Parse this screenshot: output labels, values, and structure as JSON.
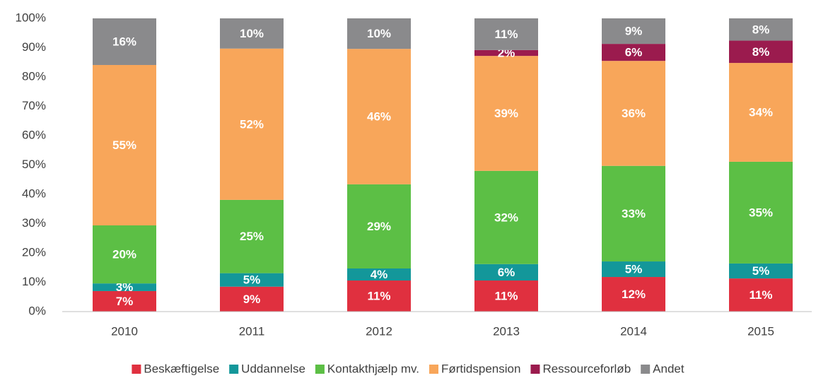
{
  "chart_data": {
    "type": "stacked_bar",
    "categories": [
      "2010",
      "2011",
      "2012",
      "2013",
      "2014",
      "2015"
    ],
    "ylim": [
      0,
      100
    ],
    "yticks": [
      {
        "value": 0,
        "label": "0%"
      },
      {
        "value": 10,
        "label": "10%"
      },
      {
        "value": 20,
        "label": "20%"
      },
      {
        "value": 30,
        "label": "30%"
      },
      {
        "value": 40,
        "label": "40%"
      },
      {
        "value": 50,
        "label": "50%"
      },
      {
        "value": 60,
        "label": "60%"
      },
      {
        "value": 70,
        "label": "70%"
      },
      {
        "value": 80,
        "label": "80%"
      },
      {
        "value": 90,
        "label": "90%"
      },
      {
        "value": 100,
        "label": "100%"
      }
    ],
    "legend": "bottom",
    "series": [
      {
        "name": "Beskæftigelse",
        "color": "#e0303f",
        "values": [
          7.0,
          8.5,
          10.6,
          10.6,
          11.8,
          11.3
        ],
        "value_labels": [
          "7%",
          "9%",
          "11%",
          "11%",
          "12%",
          "11%"
        ]
      },
      {
        "name": "Uddannelse",
        "color": "#13979a",
        "values": [
          2.6,
          4.6,
          4.1,
          5.6,
          5.3,
          5.1
        ],
        "value_labels": [
          "3%",
          "5%",
          "4%",
          "6%",
          "5%",
          "5%"
        ]
      },
      {
        "name": "Kontakthjælp mv.",
        "color": "#5cbf45",
        "values": [
          19.8,
          25.0,
          28.7,
          31.8,
          32.6,
          34.7
        ],
        "value_labels": [
          "20%",
          "25%",
          "29%",
          "32%",
          "33%",
          "35%"
        ]
      },
      {
        "name": "Førtidspension",
        "color": "#f8a65a",
        "values": [
          54.7,
          51.6,
          46.2,
          39.2,
          35.8,
          33.7
        ],
        "value_labels": [
          "55%",
          "52%",
          "46%",
          "39%",
          "36%",
          "34%"
        ]
      },
      {
        "name": "Ressourceforløb",
        "color": "#9b1b4e",
        "values": [
          null,
          null,
          null,
          2.0,
          5.8,
          7.6
        ],
        "value_labels": [
          null,
          null,
          null,
          "2%",
          "6%",
          "8%"
        ]
      },
      {
        "name": "Andet",
        "color": "#8a8a8c",
        "values": [
          15.9,
          10.3,
          10.4,
          10.8,
          8.7,
          7.6
        ],
        "value_labels": [
          "16%",
          "10%",
          "10%",
          "11%",
          "9%",
          "8%"
        ]
      }
    ]
  }
}
